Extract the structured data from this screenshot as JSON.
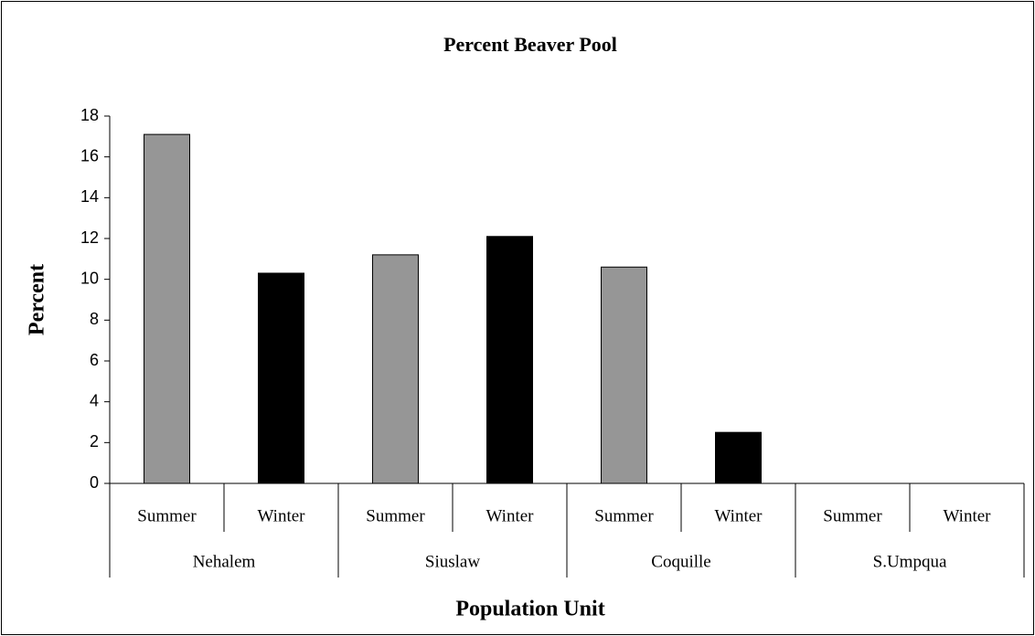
{
  "chart_data": {
    "type": "bar",
    "title": "Percent Beaver Pool",
    "x_label": "Population Unit",
    "y_label": "Percent",
    "categories": [
      "Summer",
      "Winter",
      "Summer",
      "Winter",
      "Summer",
      "Winter",
      "Summer",
      "Winter"
    ],
    "groups": [
      "Nehalem",
      "Siuslaw",
      "Coquille",
      "S.Umpqua"
    ],
    "values": [
      17.1,
      10.3,
      11.2,
      12.1,
      10.6,
      2.5,
      0,
      0
    ],
    "colors": [
      "#969696",
      "#000000",
      "#969696",
      "#000000",
      "#969696",
      "#000000",
      "#969696",
      "#000000"
    ],
    "ylim": [
      0,
      18
    ],
    "yticks": [
      0,
      2,
      4,
      6,
      8,
      10,
      12,
      14,
      16,
      18
    ],
    "grid": false
  }
}
